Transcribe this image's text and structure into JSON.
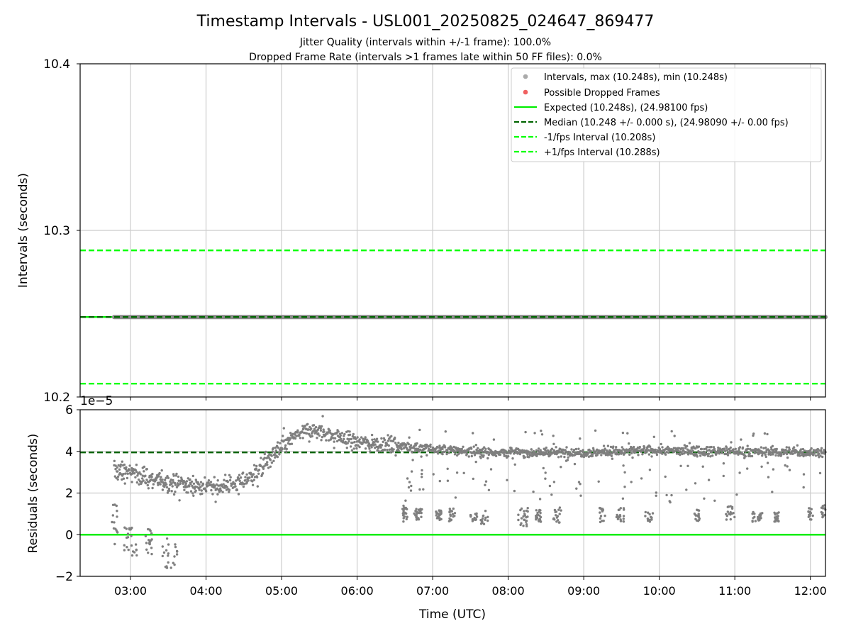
{
  "title": "Timestamp Intervals - USL001_20250825_024647_869477",
  "subtitle_line1": "Jitter Quality (intervals within +/-1 frame): 100.0%",
  "subtitle_line2": "Dropped Frame Rate (intervals >1 frames late within 50 FF files): 0.0%",
  "colors": {
    "intervals": "#999999",
    "dropped": "#e74c3c",
    "expected": "#00ee00",
    "median": "#006400",
    "fps_band": "#00ff00",
    "residuals": "#7f7f7f",
    "grid": "#cccccc"
  },
  "chart_data": [
    {
      "type": "line",
      "ylabel": "Intervals (seconds)",
      "xlabel": "",
      "xlim": [
        "02:20",
        "12:12"
      ],
      "ylim": [
        10.2,
        10.4
      ],
      "grid": true,
      "yticks": [
        "10.2",
        "10.3",
        "10.4"
      ],
      "legend_position": "top-right",
      "legend": [
        {
          "label": "Intervals, max (10.248s), min (10.248s)",
          "kind": "marker",
          "color": "#aaaaaa"
        },
        {
          "label": "Possible Dropped Frames",
          "kind": "marker",
          "color": "#f06060"
        },
        {
          "label": "Expected (10.248s), (24.98100 fps)",
          "kind": "solid",
          "color": "#00ee00"
        },
        {
          "label": "Median (10.248 +/- 0.000 s), (24.98090 +/- 0.00 fps)",
          "kind": "dashed",
          "color": "#006400"
        },
        {
          "label": "-1/fps Interval (10.208s)",
          "kind": "dashed",
          "color": "#00ff00"
        },
        {
          "label": "+1/fps Interval (10.288s)",
          "kind": "dashed",
          "color": "#00ff00"
        }
      ],
      "series": [
        {
          "name": "Intervals, max (10.248s), min (10.248s)",
          "x_start": "02:47",
          "x_end": "12:12",
          "value": 10.248
        },
        {
          "name": "Expected (10.248s), (24.98100 fps)",
          "value": 10.248
        },
        {
          "name": "Median (10.248 +/- 0.000 s), (24.98090 +/- 0.00 fps)",
          "value": 10.248
        },
        {
          "name": "-1/fps Interval (10.208s)",
          "value": 10.208
        },
        {
          "name": "+1/fps Interval (10.288s)",
          "value": 10.288
        }
      ]
    },
    {
      "type": "scatter",
      "ylabel": "Residuals (seconds)",
      "xlabel": "Time (UTC)",
      "scale_label": "1e−5",
      "xlim": [
        "02:20",
        "12:12"
      ],
      "ylim": [
        -2,
        6
      ],
      "grid": true,
      "yticks": [
        "−2",
        "0",
        "2",
        "4",
        "6"
      ],
      "xticks": [
        "03:00",
        "04:00",
        "05:00",
        "06:00",
        "07:00",
        "08:00",
        "09:00",
        "10:00",
        "11:00",
        "12:00"
      ],
      "expected_residual": 0,
      "median_residual": 3.95,
      "main_trend": [
        {
          "x": "02:47",
          "y": 3.1
        },
        {
          "x": "03:00",
          "y": 3.0
        },
        {
          "x": "03:15",
          "y": 2.7
        },
        {
          "x": "03:30",
          "y": 2.5
        },
        {
          "x": "03:45",
          "y": 2.4
        },
        {
          "x": "04:00",
          "y": 2.3
        },
        {
          "x": "04:15",
          "y": 2.3
        },
        {
          "x": "04:30",
          "y": 2.6
        },
        {
          "x": "04:40",
          "y": 3.0
        },
        {
          "x": "04:50",
          "y": 3.6
        },
        {
          "x": "05:00",
          "y": 4.2
        },
        {
          "x": "05:10",
          "y": 4.7
        },
        {
          "x": "05:20",
          "y": 5.0
        },
        {
          "x": "05:30",
          "y": 4.95
        },
        {
          "x": "05:45",
          "y": 4.7
        },
        {
          "x": "06:00",
          "y": 4.45
        },
        {
          "x": "06:30",
          "y": 4.3
        },
        {
          "x": "07:00",
          "y": 4.1
        },
        {
          "x": "07:30",
          "y": 4.0
        },
        {
          "x": "08:00",
          "y": 3.95
        },
        {
          "x": "09:00",
          "y": 3.95
        },
        {
          "x": "10:00",
          "y": 4.05
        },
        {
          "x": "11:00",
          "y": 4.0
        },
        {
          "x": "12:12",
          "y": 3.95
        }
      ],
      "low_clusters": [
        {
          "x_start": "02:45",
          "x_end": "02:50",
          "y_min": -0.5,
          "y_max": 1.5
        },
        {
          "x_start": "02:55",
          "x_end": "03:05",
          "y_min": -1.0,
          "y_max": 0.4
        },
        {
          "x_start": "03:12",
          "x_end": "03:17",
          "y_min": -1.1,
          "y_max": 0.3
        },
        {
          "x_start": "03:25",
          "x_end": "03:37",
          "y_min": -1.6,
          "y_max": -0.1
        },
        {
          "x_start": "06:36",
          "x_end": "06:40",
          "y_min": 0.6,
          "y_max": 1.4
        },
        {
          "x_start": "06:45",
          "x_end": "06:52",
          "y_min": 0.7,
          "y_max": 1.3
        },
        {
          "x_start": "07:02",
          "x_end": "07:07",
          "y_min": 0.7,
          "y_max": 1.2
        },
        {
          "x_start": "07:13",
          "x_end": "07:18",
          "y_min": 0.6,
          "y_max": 1.3
        },
        {
          "x_start": "07:30",
          "x_end": "07:36",
          "y_min": 0.6,
          "y_max": 1.1
        },
        {
          "x_start": "07:38",
          "x_end": "07:44",
          "y_min": 0.4,
          "y_max": 1.3
        },
        {
          "x_start": "08:08",
          "x_end": "08:16",
          "y_min": 0.4,
          "y_max": 1.3
        },
        {
          "x_start": "08:22",
          "x_end": "08:26",
          "y_min": 0.6,
          "y_max": 1.2
        },
        {
          "x_start": "08:36",
          "x_end": "08:42",
          "y_min": 0.5,
          "y_max": 1.3
        },
        {
          "x_start": "09:12",
          "x_end": "09:17",
          "y_min": 0.6,
          "y_max": 1.3
        },
        {
          "x_start": "09:26",
          "x_end": "09:32",
          "y_min": 0.6,
          "y_max": 1.3
        },
        {
          "x_start": "09:47",
          "x_end": "09:55",
          "y_min": 0.6,
          "y_max": 1.1
        },
        {
          "x_start": "10:28",
          "x_end": "10:32",
          "y_min": 0.6,
          "y_max": 1.2
        },
        {
          "x_start": "10:53",
          "x_end": "11:00",
          "y_min": 0.7,
          "y_max": 1.4
        },
        {
          "x_start": "11:14",
          "x_end": "11:22",
          "y_min": 0.6,
          "y_max": 1.1
        },
        {
          "x_start": "11:31",
          "x_end": "11:35",
          "y_min": 0.6,
          "y_max": 1.1
        },
        {
          "x_start": "11:58",
          "x_end": "12:02",
          "y_min": 0.7,
          "y_max": 1.3
        },
        {
          "x_start": "12:08",
          "x_end": "12:12",
          "y_min": 0.8,
          "y_max": 1.5
        }
      ]
    }
  ]
}
